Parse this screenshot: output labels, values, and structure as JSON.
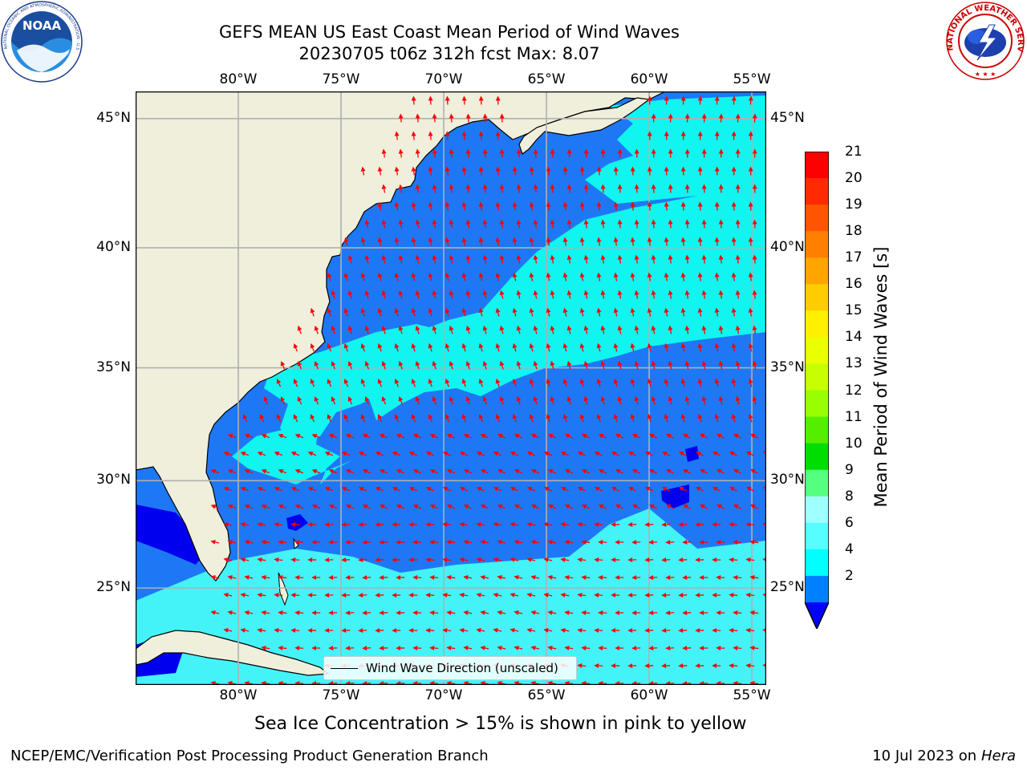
{
  "title": {
    "line1": "GEFS MEAN US East Coast Mean Period of Wind Waves",
    "line2": "20230705 t06z 312h fcst   Max: 8.07"
  },
  "logos": {
    "left": "NOAA",
    "left_ring_text": "NATIONAL OCEANIC AND ATMOSPHERIC ADMINISTRATION · U.S. DEPARTMENT OF COMMERCE",
    "right_ring_text": "NATIONAL WEATHER SERVICE"
  },
  "map": {
    "lon_labels": [
      "80°W",
      "75°W",
      "70°W",
      "65°W",
      "60°W",
      "55°W"
    ],
    "lat_labels": [
      "45°N",
      "40°N",
      "35°N",
      "30°N",
      "25°N"
    ],
    "lon_ticks": [
      -80,
      -75,
      -70,
      -65,
      -60,
      -55
    ],
    "lat_ticks": [
      45,
      40,
      35,
      30,
      25
    ],
    "lon_range": [
      -85,
      -54.3
    ],
    "lat_range": [
      20.3,
      46.0
    ],
    "colors": {
      "land": "#efefdc",
      "coast": "#000000",
      "grid": "#b0b0b0",
      "arrow": "#ff0000"
    },
    "legend": "Wind Wave Direction (unscaled)"
  },
  "colorbar": {
    "title": "Mean Period of Wind Waves [s]",
    "labels": [
      "21",
      "20",
      "19",
      "18",
      "17",
      "16",
      "15",
      "14",
      "13",
      "12",
      "11",
      "10",
      "9",
      "8",
      "6",
      "4",
      "2"
    ],
    "colors": [
      "#ff0000",
      "#ff2a00",
      "#ff5500",
      "#ff7f00",
      "#ffa500",
      "#ffcc00",
      "#fff000",
      "#eaff00",
      "#c8ff00",
      "#99ff00",
      "#55ee00",
      "#00dd00",
      "#55ff80",
      "#a0ffff",
      "#55ffff",
      "#00ffff",
      "#0080ff"
    ],
    "extend_color": "#0000ff"
  },
  "subtitle": "Sea Ice Concentration > 15% is shown in pink to yellow",
  "footer": {
    "left": "NCEP/EMC/Verification Post Processing Product Generation Branch",
    "right_date": "10 Jul 2023 on ",
    "right_machine": "Hera"
  }
}
